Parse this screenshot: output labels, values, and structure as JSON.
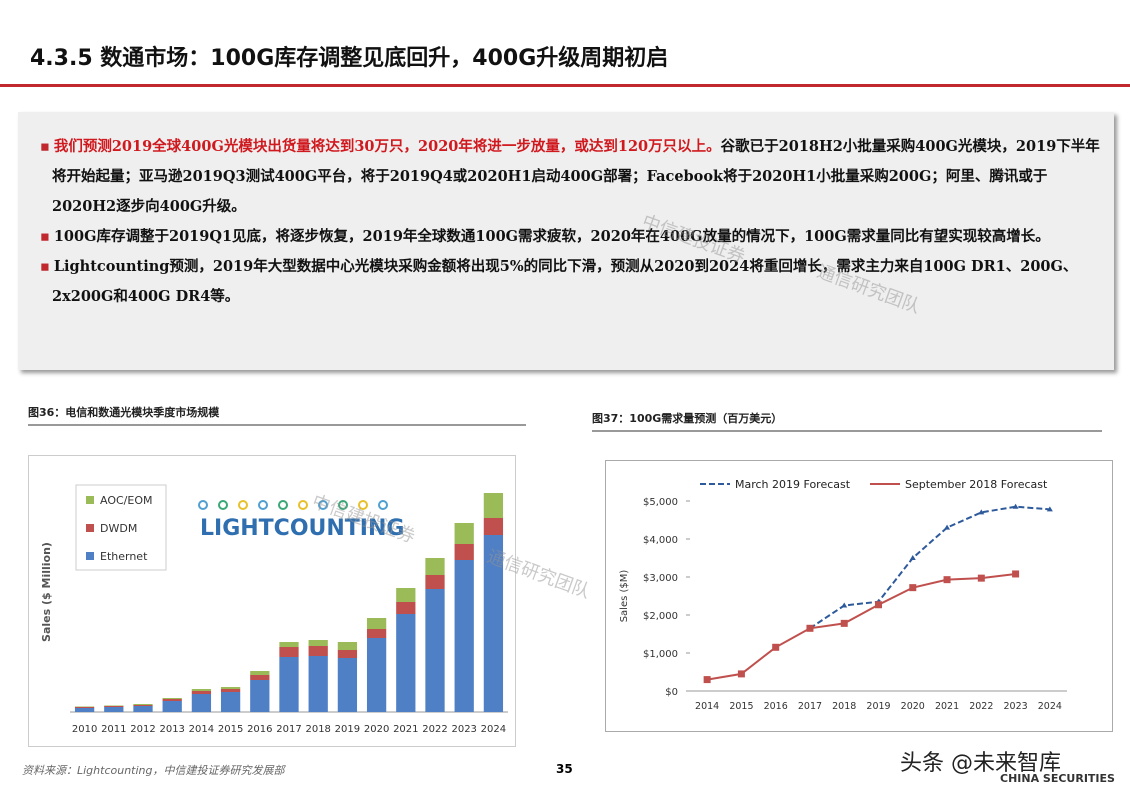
{
  "header": {
    "title": "4.3.5 数通市场：100G库存调整见底回升，400G升级周期初启"
  },
  "bullets": [
    {
      "red": "我们预测2019全球400G光模块出货量将达到30万只，2020年将进一步放量，或达到120万只以上。",
      "text": "谷歌已于2018H2小批量采购400G光模块，2019下半年将开始起量；亚马逊2019Q3测试400G平台，将于2019Q4或2020H1启动400G部署；Facebook将于2020H1小批量采购200G；阿里、腾讯或于2020H2逐步向400G升级。"
    },
    {
      "text": "100G库存调整于2019Q1见底，将逐步恢复，2019年全球数通100G需求疲软，2020年在400G放量的情况下，100G需求量同比有望实现较高增长。"
    },
    {
      "text": "Lightcounting预测，2019年大型数据中心光模块采购金额将出现5%的同比下滑，预测从2020到2024将重回增长，需求主力来自100G DR1、200G、2x200G和400G DR4等。"
    }
  ],
  "watermark": {
    "company": "中信建投证券",
    "team": "通信研究团队"
  },
  "chart_data": [
    {
      "type": "stacked-bar",
      "caption": "图36：电信和数通光模块季度市场规模",
      "logo": "LIGHTCOUNTING",
      "y_label": "Sales ($ Million)",
      "categories": [
        "2010",
        "2011",
        "2012",
        "2013",
        "2014",
        "2015",
        "2016",
        "2017",
        "2018",
        "2019",
        "2020",
        "2021",
        "2022",
        "2023",
        "2024"
      ],
      "ylim": [
        0,
        12000
      ],
      "legend": "top-left",
      "series": [
        {
          "name": "Ethernet",
          "color": "#4f7fc4",
          "values": [
            200,
            250,
            300,
            550,
            900,
            1000,
            1600,
            2750,
            2800,
            2700,
            3700,
            4900,
            6150,
            7600,
            8850
          ]
        },
        {
          "name": "DWDM",
          "color": "#c0504d",
          "values": [
            50,
            50,
            50,
            100,
            150,
            150,
            250,
            500,
            500,
            400,
            450,
            600,
            700,
            800,
            850
          ]
        },
        {
          "name": "AOC/EOM",
          "color": "#9bbb59",
          "values": [
            25,
            25,
            50,
            50,
            100,
            100,
            200,
            250,
            300,
            400,
            550,
            700,
            850,
            1050,
            1250
          ]
        }
      ]
    },
    {
      "type": "line",
      "caption": "图37：100G需求量预测（百万美元）",
      "y_label": "Sales ($M)",
      "categories": [
        "2014",
        "2015",
        "2016",
        "2017",
        "2018",
        "2019",
        "2020",
        "2021",
        "2022",
        "2023",
        "2024"
      ],
      "ylim": [
        0,
        5000
      ],
      "yticks": [
        {
          "value": 0,
          "label": "$0"
        },
        {
          "value": 1000,
          "label": "$1,000"
        },
        {
          "value": 2000,
          "label": "$2,000"
        },
        {
          "value": 3000,
          "label": "$3,000"
        },
        {
          "value": 4000,
          "label": "$4,000"
        },
        {
          "value": 5000,
          "label": "$5,000"
        }
      ],
      "grid": false,
      "legend": "top",
      "series": [
        {
          "name": "March 2019 Forecast",
          "color": "#2e5a9c",
          "dashed": true,
          "values": [
            null,
            null,
            null,
            1650,
            2250,
            2350,
            3500,
            4300,
            4700,
            4850,
            4780
          ]
        },
        {
          "name": "September 2018 Forecast",
          "color": "#c0504d",
          "dashed": false,
          "values": [
            300,
            450,
            1150,
            1650,
            1780,
            2270,
            2720,
            2930,
            2970,
            3080,
            null
          ]
        }
      ]
    }
  ],
  "footer": {
    "source": "资料来源：Lightcounting，中信建投证券研究发展部",
    "page": "35",
    "brand": "头条 @未来智库",
    "brand_en": "CHINA SECURITIES"
  }
}
